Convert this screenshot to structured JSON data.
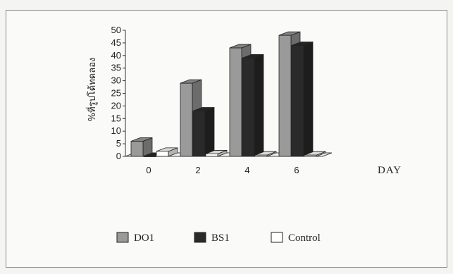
{
  "chart_data": {
    "type": "bar",
    "categories": [
      "0",
      "2",
      "4",
      "6"
    ],
    "series": [
      {
        "name": "DO1",
        "values": [
          6,
          29,
          43,
          48
        ],
        "color": "#9a9a9a"
      },
      {
        "name": "BS1",
        "values": [
          0,
          18,
          39,
          44
        ],
        "color": "#2a2a2a"
      },
      {
        "name": "Control",
        "values": [
          2,
          1,
          0.5,
          0.5
        ],
        "color": "#ffffff"
      }
    ],
    "yticks": [
      "0",
      "5",
      "10",
      "15",
      "20",
      "25",
      "30",
      "35",
      "40",
      "45",
      "50"
    ],
    "ylim": [
      0,
      50
    ],
    "xlabel": "DAY",
    "ylabel": "%ที่รูปโด้ทดลอง",
    "legend_position": "bottom",
    "style": "3d-bar"
  }
}
